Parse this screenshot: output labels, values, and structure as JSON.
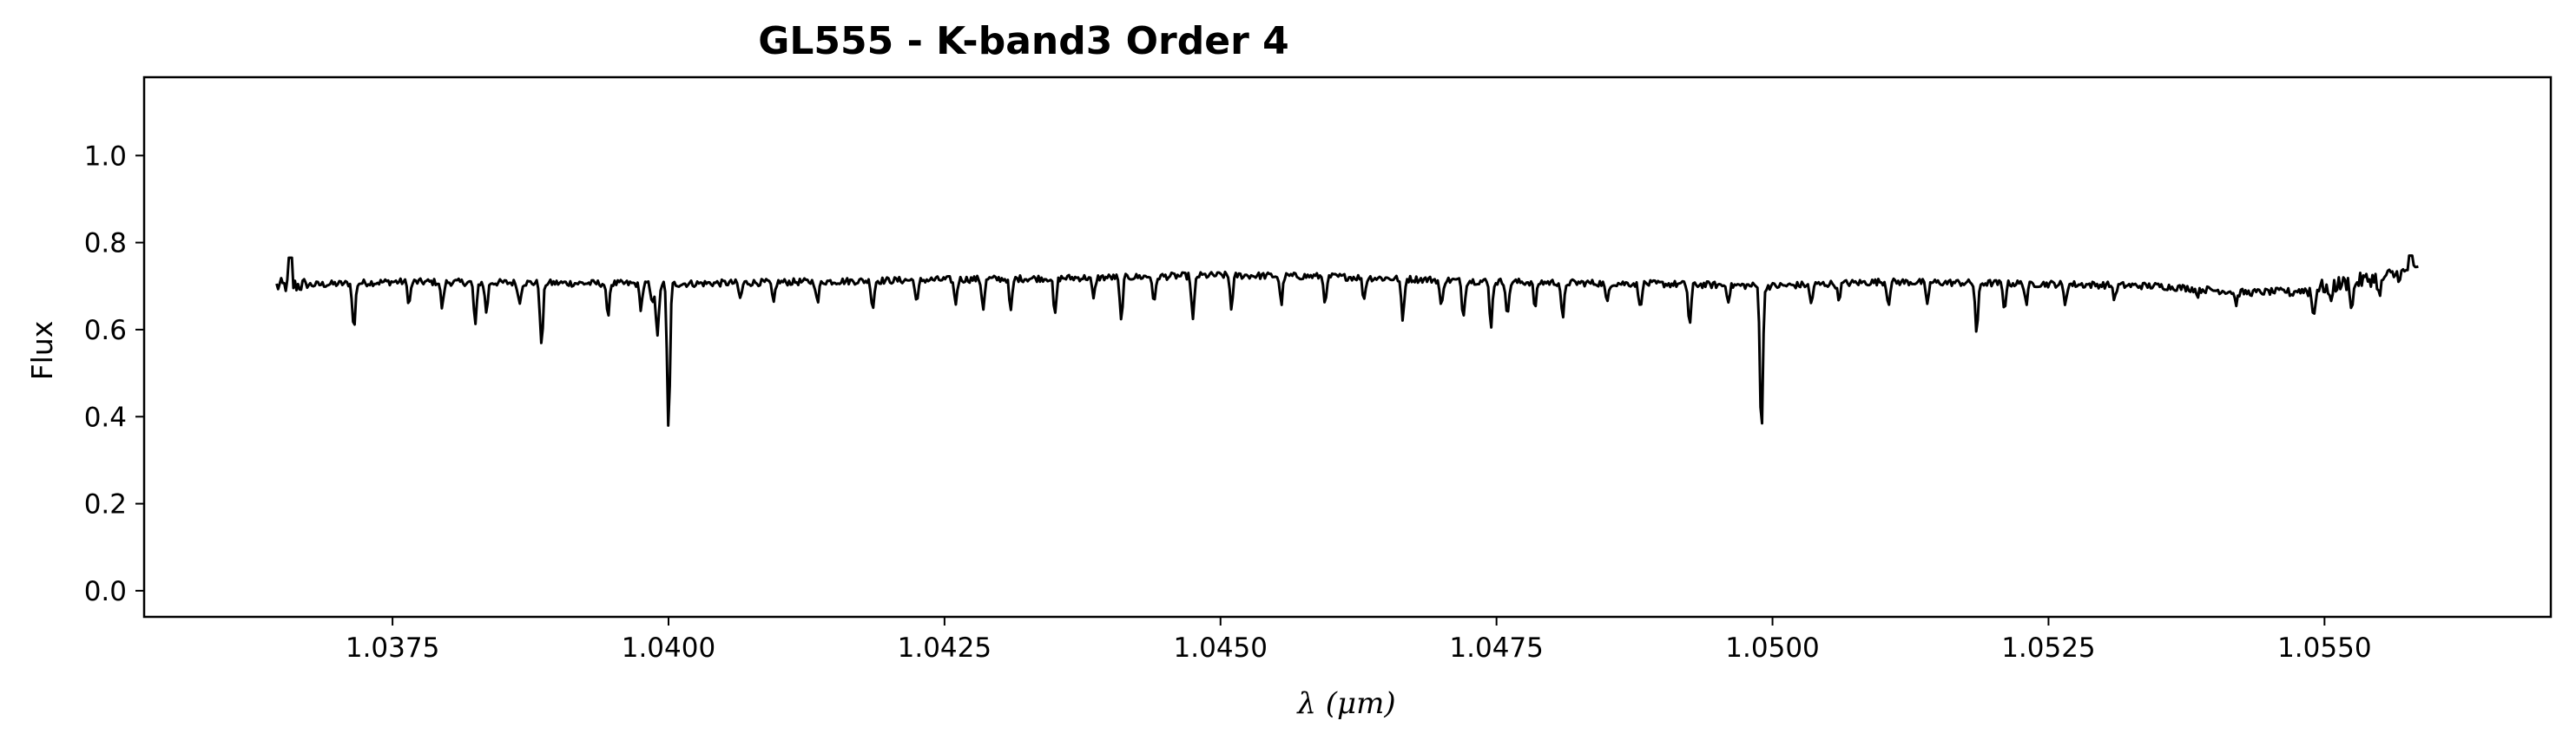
{
  "chart_data": {
    "type": "line",
    "title": "GL555 - K-band3 Order 4",
    "xlabel": "λ (μm)",
    "ylabel": "Flux",
    "xlim": [
      1.03525,
      1.05705
    ],
    "ylim": [
      -0.06,
      1.18
    ],
    "x_ticks": [
      1.0375,
      1.04,
      1.0425,
      1.045,
      1.0475,
      1.05,
      1.0525,
      1.055
    ],
    "x_tick_labels": [
      "1.0375",
      "1.0400",
      "1.0425",
      "1.0450",
      "1.0475",
      "1.0500",
      "1.0525",
      "1.0550"
    ],
    "y_ticks": [
      0.0,
      0.2,
      0.4,
      0.6,
      0.8,
      1.0
    ],
    "y_tick_labels": [
      "0.0",
      "0.2",
      "0.4",
      "0.6",
      "0.8",
      "1.0"
    ],
    "grid": false,
    "line_color": "#000000",
    "series": [
      {
        "x_range": [
          1.03645,
          1.05585
        ],
        "continuum": [
          [
            1.03645,
            0.7
          ],
          [
            1.0375,
            0.71
          ],
          [
            1.04,
            0.705
          ],
          [
            1.0425,
            0.715
          ],
          [
            1.044,
            0.72
          ],
          [
            1.045,
            0.725
          ],
          [
            1.046,
            0.722
          ],
          [
            1.0475,
            0.71
          ],
          [
            1.049,
            0.705
          ],
          [
            1.05,
            0.7
          ],
          [
            1.051,
            0.71
          ],
          [
            1.0525,
            0.705
          ],
          [
            1.0535,
            0.7
          ],
          [
            1.0543,
            0.685
          ],
          [
            1.0548,
            0.69
          ],
          [
            1.0555,
            0.72
          ],
          [
            1.05585,
            0.735
          ]
        ],
        "absorption_lines": [
          [
            1.03715,
            0.6
          ],
          [
            1.03765,
            0.66
          ],
          [
            1.03795,
            0.65
          ],
          [
            1.03825,
            0.61
          ],
          [
            1.03835,
            0.64
          ],
          [
            1.03865,
            0.66
          ],
          [
            1.03885,
            0.56
          ],
          [
            1.03945,
            0.63
          ],
          [
            1.03975,
            0.65
          ],
          [
            1.03985,
            0.66
          ],
          [
            1.0399,
            0.58
          ],
          [
            1.04,
            0.37
          ],
          [
            1.04065,
            0.67
          ],
          [
            1.04095,
            0.66
          ],
          [
            1.04135,
            0.66
          ],
          [
            1.04185,
            0.65
          ],
          [
            1.04225,
            0.66
          ],
          [
            1.0426,
            0.66
          ],
          [
            1.04285,
            0.65
          ],
          [
            1.0431,
            0.64
          ],
          [
            1.0435,
            0.63
          ],
          [
            1.04385,
            0.67
          ],
          [
            1.0441,
            0.62
          ],
          [
            1.0444,
            0.66
          ],
          [
            1.04475,
            0.62
          ],
          [
            1.0451,
            0.65
          ],
          [
            1.04555,
            0.66
          ],
          [
            1.04595,
            0.66
          ],
          [
            1.0463,
            0.67
          ],
          [
            1.04665,
            0.62
          ],
          [
            1.047,
            0.65
          ],
          [
            1.0472,
            0.63
          ],
          [
            1.04745,
            0.61
          ],
          [
            1.0476,
            0.63
          ],
          [
            1.04785,
            0.65
          ],
          [
            1.0481,
            0.62
          ],
          [
            1.0485,
            0.66
          ],
          [
            1.0488,
            0.65
          ],
          [
            1.04925,
            0.61
          ],
          [
            1.0496,
            0.67
          ],
          [
            1.0499,
            0.36
          ],
          [
            1.05035,
            0.66
          ],
          [
            1.0506,
            0.67
          ],
          [
            1.05105,
            0.66
          ],
          [
            1.0514,
            0.66
          ],
          [
            1.05185,
            0.59
          ],
          [
            1.0521,
            0.65
          ],
          [
            1.0523,
            0.66
          ],
          [
            1.05265,
            0.66
          ],
          [
            1.0531,
            0.67
          ],
          [
            1.05385,
            0.68
          ],
          [
            1.0542,
            0.66
          ],
          [
            1.0547,
            0.68
          ],
          [
            1.0549,
            0.63
          ],
          [
            1.05505,
            0.66
          ],
          [
            1.05525,
            0.65
          ],
          [
            1.0555,
            0.67
          ]
        ]
      }
    ]
  }
}
